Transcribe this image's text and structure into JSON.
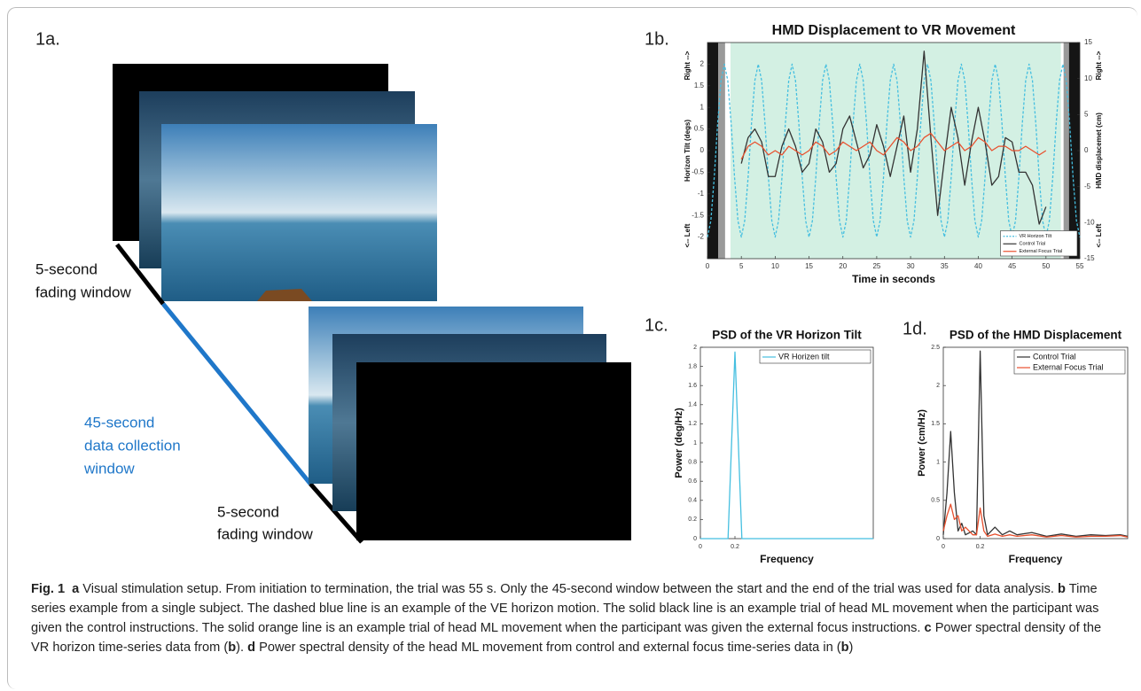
{
  "figure": {
    "panel_labels": [
      "1a.",
      "1b.",
      "1c.",
      "1d."
    ],
    "setup_labels": {
      "start_window": [
        "5-second",
        "fading window"
      ],
      "collection_window": [
        "45-second",
        "data collection",
        "window"
      ],
      "end_window": [
        "5-second",
        "fading window"
      ]
    },
    "caption": [
      {
        "text": "Fig. 1",
        "bold": true
      },
      {
        "text": "a",
        "bold": true
      },
      {
        "text": " Visual stimulation setup. From initiation to termination, the trial was 55 s. Only the 45-second window between the start and the end of the trial was used for data analysis. "
      },
      {
        "text": "b",
        "bold": true
      },
      {
        "text": " Time series example from a single subject. The dashed blue line is an example of the VE horizon motion. The solid black line is an example trial of head ML movement when the participant was given the control instructions. The solid orange line is an example trial of head ML movement when the participant was given the external focus instructions. "
      },
      {
        "text": "c",
        "bold": true
      },
      {
        "text": " Power spectral density of the VR horizon time-series data from ("
      },
      {
        "text": "b",
        "bold": true
      },
      {
        "text": "). "
      },
      {
        "text": "d",
        "bold": true
      },
      {
        "text": " Power spectral density of the head ML movement from control and external focus time-series data in ("
      },
      {
        "text": "b",
        "bold": true
      },
      {
        "text": ")"
      }
    ]
  },
  "chart_data": [
    {
      "type": "line",
      "title": "HMD Displacement to VR Movement",
      "xlabel": "Time in seconds",
      "ylabel": "Horizon Tilt (degs)",
      "y_direction_labels": {
        "top": "Right -->",
        "bottom": "<-- Left"
      },
      "y2label": "HMD displacemet (cm)",
      "y2_direction_labels": {
        "top": "Right -->",
        "bottom": "<-- Left"
      },
      "xlim": [
        0,
        55
      ],
      "xticks": [
        0,
        5,
        10,
        15,
        20,
        25,
        30,
        35,
        40,
        45,
        50,
        55
      ],
      "ylim": [
        -2.5,
        2.5
      ],
      "yticks": [
        -2,
        -1.5,
        -1,
        -0.5,
        0,
        0.5,
        1,
        1.5,
        2
      ],
      "y2lim": [
        -15,
        15
      ],
      "y2ticks": [
        -15,
        -10,
        -5,
        0,
        5,
        10,
        15
      ],
      "shaded_regions": [
        {
          "xlim": [
            0,
            1.6
          ],
          "color": "#151515"
        },
        {
          "xlim": [
            1.6,
            2.6
          ],
          "color": "#9a9a9a"
        },
        {
          "xlim": [
            3.4,
            52.2
          ],
          "color": "#d3f0e3"
        },
        {
          "xlim": [
            52.6,
            53.4
          ],
          "color": "#9a9a9a"
        },
        {
          "xlim": [
            53.4,
            55
          ],
          "color": "#151515"
        }
      ],
      "legend": "lower right",
      "series": [
        {
          "name": "VR Horizon Tilt",
          "color": "#45bfe0",
          "linestyle": "dashed",
          "x": [
            0,
            0.5,
            1,
            1.5,
            2,
            2.5,
            3,
            3.5,
            4,
            4.5,
            5,
            5.5,
            6,
            6.5,
            7,
            7.5,
            8,
            8.5,
            9,
            9.5,
            10,
            10.5,
            11,
            11.5,
            12,
            12.5,
            13,
            13.5,
            14,
            14.5,
            15,
            15.5,
            16,
            16.5,
            17,
            17.5,
            18,
            18.5,
            19,
            19.5,
            20,
            20.5,
            21,
            21.5,
            22,
            22.5,
            23,
            23.5,
            24,
            24.5,
            25,
            25.5,
            26,
            26.5,
            27,
            27.5,
            28,
            28.5,
            29,
            29.5,
            30,
            30.5,
            31,
            31.5,
            32,
            32.5,
            33,
            33.5,
            34,
            34.5,
            35,
            35.5,
            36,
            36.5,
            37,
            37.5,
            38,
            38.5,
            39,
            39.5,
            40,
            40.5,
            41,
            41.5,
            42,
            42.5,
            43,
            43.5,
            44,
            44.5,
            45,
            45.5,
            46,
            46.5,
            47,
            47.5,
            48,
            48.5,
            49,
            49.5,
            50,
            50.5,
            51,
            51.5,
            52,
            52.5,
            53,
            53.5,
            54,
            54.5,
            55
          ],
          "values": [
            -2,
            -1.62,
            -0.62,
            0.62,
            1.62,
            2,
            1.62,
            0.62,
            -0.62,
            -1.62,
            -2,
            -1.62,
            -0.62,
            0.62,
            1.62,
            2,
            1.62,
            0.62,
            -0.62,
            -1.62,
            -2,
            -1.62,
            -0.62,
            0.62,
            1.62,
            2,
            1.62,
            0.62,
            -0.62,
            -1.62,
            -2,
            -1.62,
            -0.62,
            0.62,
            1.62,
            2,
            1.62,
            0.62,
            -0.62,
            -1.62,
            -2,
            -1.62,
            -0.62,
            0.62,
            1.62,
            2,
            1.62,
            0.62,
            -0.62,
            -1.62,
            -2,
            -1.62,
            -0.62,
            0.62,
            1.62,
            2,
            1.62,
            0.62,
            -0.62,
            -1.62,
            -2,
            -1.62,
            -0.62,
            0.62,
            1.62,
            2,
            1.62,
            0.62,
            -0.62,
            -1.62,
            -2,
            -1.62,
            -0.62,
            0.62,
            1.62,
            2,
            1.62,
            0.62,
            -0.62,
            -1.62,
            -2,
            -1.62,
            -0.62,
            0.62,
            1.62,
            2,
            1.62,
            0.62,
            -0.62,
            -1.62,
            -2,
            -1.62,
            -0.62,
            0.62,
            1.62,
            2,
            1.62,
            0.62,
            -0.62,
            -1.62,
            -2,
            -1.62,
            -0.62,
            0.62,
            1.62,
            2,
            1.62,
            0.62,
            -0.62,
            -1.62,
            -2
          ]
        },
        {
          "name": "Control Trial",
          "color": "#333333",
          "axis": "y2",
          "x": [
            5,
            6,
            7,
            8,
            9,
            10,
            11,
            12,
            13,
            14,
            15,
            16,
            17,
            18,
            19,
            20,
            21,
            22,
            23,
            24,
            25,
            26,
            27,
            28,
            29,
            30,
            31,
            32,
            33,
            34,
            35,
            36,
            37,
            38,
            39,
            40,
            41,
            42,
            43,
            44,
            45,
            46,
            47,
            48,
            49,
            50
          ],
          "values": [
            -1.8,
            1.8,
            3,
            1.2,
            -3.6,
            -3.6,
            0.6,
            3,
            0.6,
            -3,
            -1.8,
            3,
            1.2,
            -3,
            -1.8,
            3,
            4.8,
            1.2,
            -2.4,
            -0.6,
            3.6,
            0.6,
            -3.6,
            0.6,
            4.8,
            -3,
            3,
            13.8,
            1.8,
            -9,
            -1.2,
            6,
            1.8,
            -4.8,
            1.2,
            6,
            1.2,
            -4.8,
            -3.6,
            1.8,
            1.2,
            -3,
            -3,
            -4.8,
            -10.2,
            -7.8
          ]
        },
        {
          "name": "External Focus Trial",
          "color": "#e8502e",
          "axis": "y2",
          "x": [
            5,
            6,
            7,
            8,
            9,
            10,
            11,
            12,
            13,
            14,
            15,
            16,
            17,
            18,
            19,
            20,
            21,
            22,
            23,
            24,
            25,
            26,
            27,
            28,
            29,
            30,
            31,
            32,
            33,
            34,
            35,
            36,
            37,
            38,
            39,
            40,
            41,
            42,
            43,
            44,
            45,
            46,
            47,
            48,
            49,
            50
          ],
          "values": [
            -1.2,
            0.6,
            1.2,
            0.6,
            -0.6,
            0,
            -0.6,
            0.6,
            0,
            -0.6,
            0,
            1.2,
            0.6,
            -0.6,
            0,
            1.2,
            0.6,
            0,
            0.6,
            1.2,
            0,
            -0.6,
            0.6,
            1.8,
            1.2,
            0,
            0.6,
            1.8,
            2.4,
            1.2,
            0,
            0.6,
            1.2,
            0,
            0.6,
            1.8,
            1.2,
            0,
            0.6,
            0.6,
            0,
            0,
            0.6,
            0,
            -0.6,
            0
          ]
        }
      ]
    },
    {
      "type": "line",
      "title": "PSD of the VR Horizon Tilt",
      "xlabel": "Frequency",
      "ylabel": "Power (deg/Hz)",
      "xlim": [
        0,
        1
      ],
      "xticks": [
        0,
        0.2
      ],
      "ylim": [
        0,
        2
      ],
      "yticks": [
        0,
        0.2,
        0.4,
        0.6,
        0.8,
        1,
        1.2,
        1.4,
        1.6,
        1.8,
        2
      ],
      "legend": "upper right",
      "series": [
        {
          "name": "VR Horizen tilt",
          "color": "#45bfe0",
          "x": [
            0,
            0.16,
            0.2,
            0.24,
            1
          ],
          "values": [
            0,
            0,
            1.95,
            0,
            0
          ]
        }
      ]
    },
    {
      "type": "line",
      "title": "PSD of the HMD Displacement",
      "xlabel": "Frequency",
      "ylabel": "Power (cm/Hz)",
      "xlim": [
        0,
        1
      ],
      "xticks": [
        0,
        0.2
      ],
      "ylim": [
        0,
        2.5
      ],
      "yticks": [
        0,
        0.5,
        1,
        1.5,
        2,
        2.5
      ],
      "legend": "upper right",
      "series": [
        {
          "name": "Control Trial",
          "color": "#333333",
          "x": [
            0,
            0.02,
            0.04,
            0.06,
            0.08,
            0.1,
            0.12,
            0.16,
            0.18,
            0.2,
            0.22,
            0.24,
            0.28,
            0.32,
            0.36,
            0.4,
            0.48,
            0.56,
            0.64,
            0.72,
            0.8,
            0.88,
            0.96,
            1
          ],
          "values": [
            0.05,
            0.6,
            1.4,
            0.6,
            0.1,
            0.2,
            0.05,
            0.1,
            0.05,
            2.45,
            0.3,
            0.05,
            0.15,
            0.05,
            0.1,
            0.05,
            0.08,
            0.03,
            0.06,
            0.03,
            0.05,
            0.04,
            0.05,
            0.03
          ]
        },
        {
          "name": "External Focus Trial",
          "color": "#e8502e",
          "x": [
            0,
            0.02,
            0.04,
            0.06,
            0.08,
            0.1,
            0.12,
            0.16,
            0.18,
            0.2,
            0.22,
            0.24,
            0.28,
            0.32,
            0.36,
            0.4,
            0.48,
            0.56,
            0.64,
            0.72,
            0.8,
            0.88,
            0.96,
            1
          ],
          "values": [
            0.1,
            0.3,
            0.45,
            0.25,
            0.3,
            0.1,
            0.15,
            0.05,
            0.05,
            0.4,
            0.1,
            0.03,
            0.06,
            0.03,
            0.05,
            0.03,
            0.05,
            0.02,
            0.04,
            0.02,
            0.03,
            0.03,
            0.04,
            0.02
          ]
        }
      ]
    }
  ]
}
